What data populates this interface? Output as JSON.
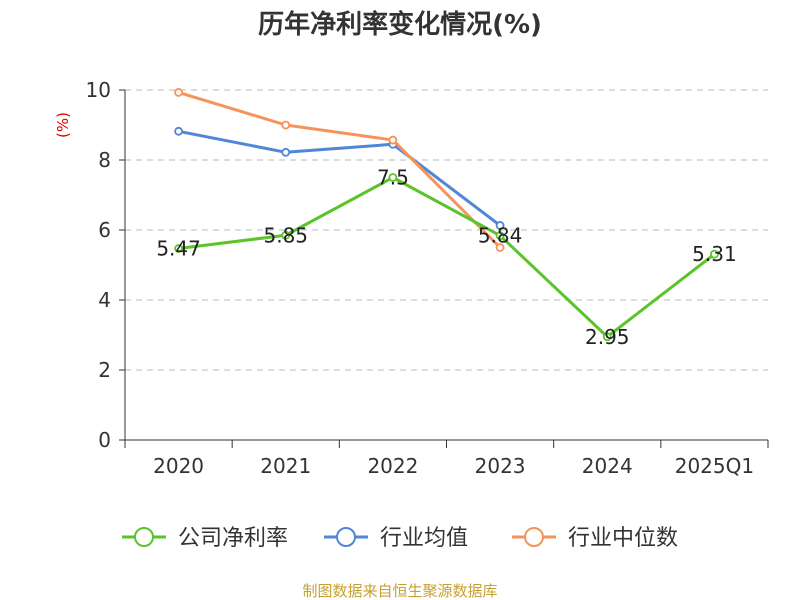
{
  "chart_data": {
    "type": "line",
    "title": "历年净利率变化情况(%)",
    "xlabel": "",
    "ylabel": "(%)",
    "ylim": [
      0,
      10
    ],
    "yticks": [
      "0",
      "2",
      "4",
      "6",
      "8",
      "10"
    ],
    "categories": [
      "2020",
      "2021",
      "2022",
      "2023",
      "2024",
      "2025Q1"
    ],
    "grid": true,
    "legend_position": "bottom",
    "series": [
      {
        "name": "公司净利率",
        "color": "#5ac42a",
        "values": [
          5.47,
          5.85,
          7.5,
          5.84,
          2.95,
          5.31
        ],
        "labels": [
          "5.47",
          "5.85",
          "7.5",
          "5.84",
          "2.95",
          "5.31"
        ]
      },
      {
        "name": "行业均值",
        "color": "#4f86d8",
        "values": [
          8.82,
          8.22,
          8.45,
          6.13,
          null,
          null
        ]
      },
      {
        "name": "行业中位数",
        "color": "#f7925a",
        "values": [
          9.93,
          9.0,
          8.57,
          5.5,
          null,
          null
        ]
      }
    ]
  },
  "source_text": "制图数据来自恒生聚源数据库"
}
